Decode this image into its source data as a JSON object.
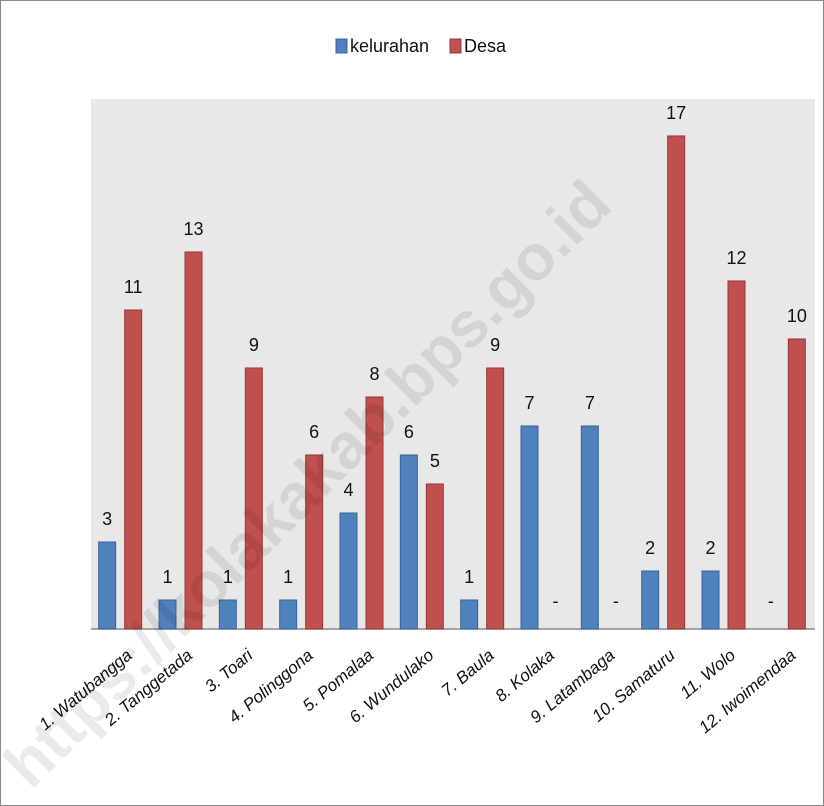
{
  "chart_data": {
    "type": "bar",
    "categories": [
      "1. Watubangga",
      "2. Tanggetada",
      "3. Toari",
      "4. Polinggona",
      "5. Pomalaa",
      "6. Wundulako",
      "7. Baula",
      "8. Kolaka",
      "9. Latambaga",
      "10. Samaturu",
      "11. Wolo",
      "12. Iwoimendaa"
    ],
    "series": [
      {
        "name": "kelurahan",
        "values": [
          3,
          1,
          1,
          1,
          4,
          6,
          1,
          7,
          7,
          2,
          2,
          null
        ],
        "labels": [
          "3",
          "1",
          "1",
          "1",
          "4",
          "6",
          "1",
          "7",
          "7",
          "2",
          "2",
          "-"
        ],
        "color": "#4f81bd"
      },
      {
        "name": "Desa",
        "values": [
          11,
          13,
          9,
          6,
          8,
          5,
          9,
          null,
          null,
          17,
          12,
          10
        ],
        "labels": [
          "11",
          "13",
          "9",
          "6",
          "8",
          "5",
          "9",
          "-",
          "-",
          "17",
          "12",
          "10"
        ],
        "color": "#c0504d"
      }
    ],
    "ylim": [
      0,
      18
    ],
    "legend": "top-center",
    "grid": false,
    "plot_background": "#e8e8e8",
    "watermark": "https://kolakakab.bps.go.id"
  }
}
